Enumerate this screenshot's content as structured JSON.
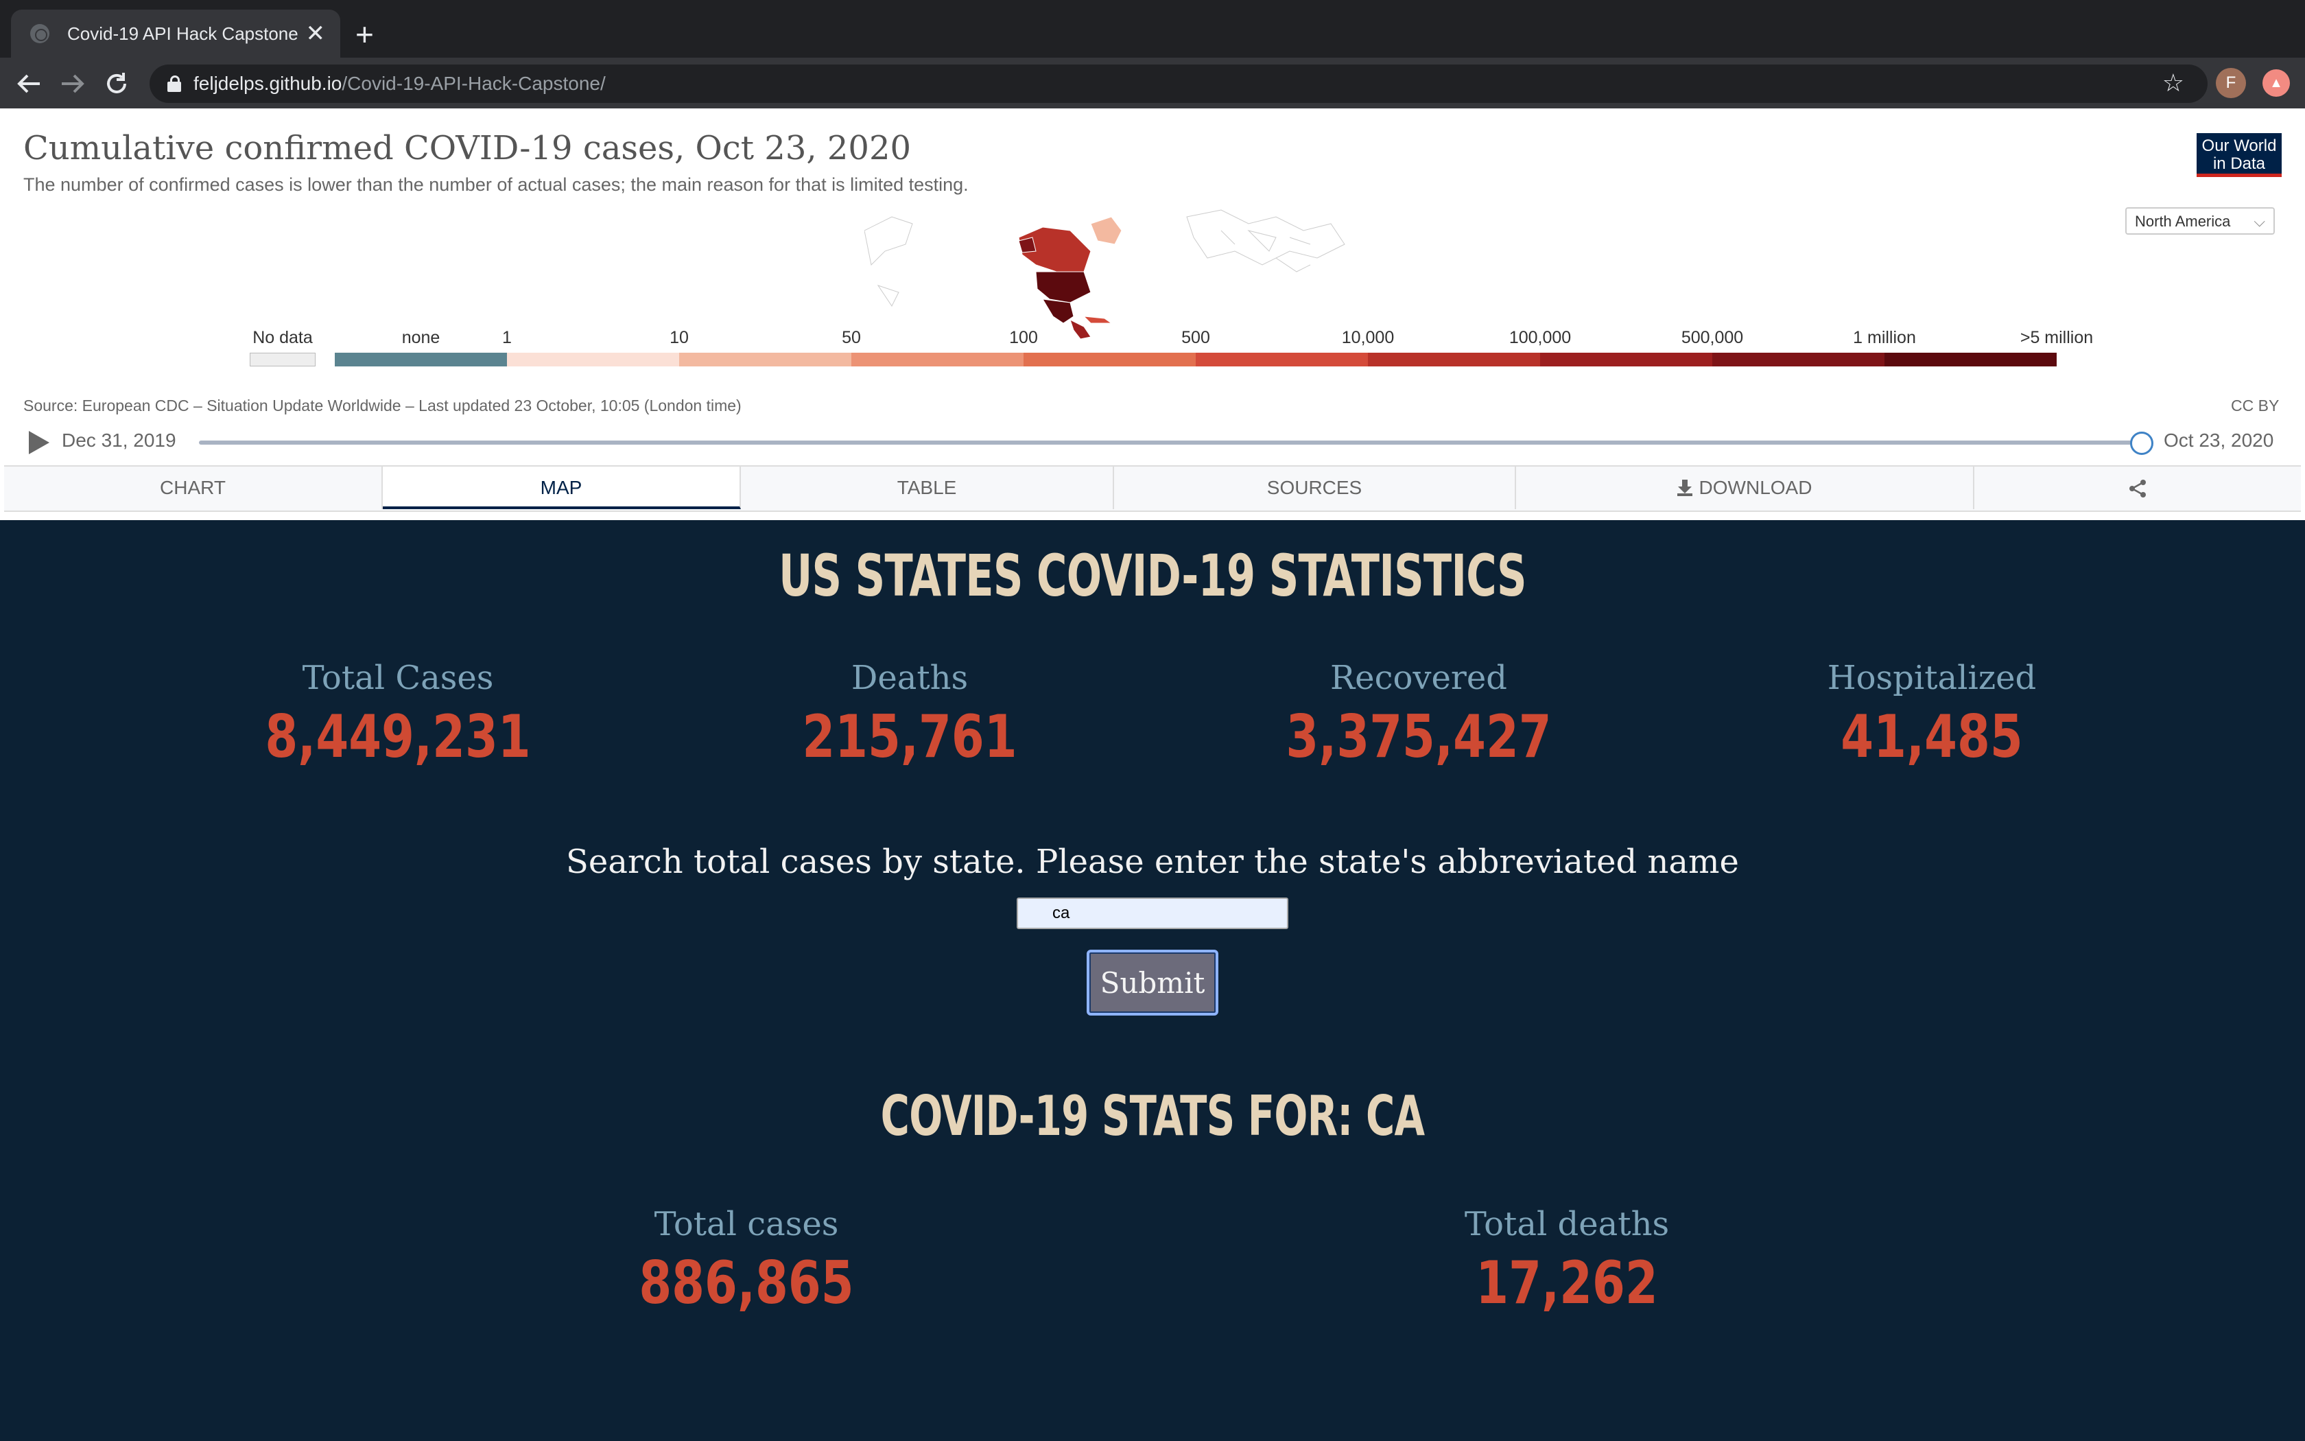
{
  "browser": {
    "tab_title": "Covid-19 API Hack Capstone",
    "tab_close": "✕",
    "new_tab": "+",
    "url_host": "feljdelps.github.io",
    "url_path": "/Covid-19-API-Hack-Capstone/",
    "profile_initial": "F",
    "icons": [
      "back-arrow-icon",
      "forward-arrow-icon",
      "reload-icon",
      "lock-icon",
      "star-icon",
      "extension-icon"
    ]
  },
  "owid": {
    "title": "Cumulative confirmed COVID-19 cases, Oct 23, 2020",
    "subtitle": "The number of confirmed cases is lower than the number of actual cases; the main reason for that is limited testing.",
    "logo_line1": "Our World",
    "logo_line2": "in Data",
    "region": "North America",
    "legend": {
      "no_data": "No data",
      "labels": [
        "none",
        "1",
        "10",
        "50",
        "100",
        "500",
        "10,000",
        "100,000",
        "500,000",
        "1 million",
        ">5 million"
      ],
      "colors": [
        "#5b8490",
        "#fbe0d6",
        "#f3b9a0",
        "#ec9375",
        "#e2704f",
        "#d44b3a",
        "#b83229",
        "#9c1f1f",
        "#7e1417",
        "#5c0a0e"
      ]
    },
    "source": "Source: European CDC – Situation Update Worldwide – Last updated 23 October, 10:05 (London time)",
    "license": "CC BY",
    "timeline_start": "Dec 31, 2019",
    "timeline_end": "Oct 23, 2020",
    "timeline_position": 1.0,
    "tabs": [
      "CHART",
      "MAP",
      "TABLE",
      "SOURCES",
      "DOWNLOAD"
    ],
    "active_tab": "MAP"
  },
  "dashboard": {
    "heading": "US STATES COVID-19 STATISTICS",
    "stats": [
      {
        "label": "Total Cases",
        "value": "8,449,231"
      },
      {
        "label": "Deaths",
        "value": "215,761"
      },
      {
        "label": "Recovered",
        "value": "3,375,427"
      },
      {
        "label": "Hospitalized",
        "value": "41,485"
      }
    ],
    "search_label": "Search total cases by state. Please enter the state's abbreviated name",
    "search_value": "ca",
    "submit_label": "Submit",
    "state_heading": "COVID-19 STATS FOR: CA",
    "state_stats": [
      {
        "label": "Total cases",
        "value": "886,865"
      },
      {
        "label": "Total deaths",
        "value": "17,262"
      }
    ],
    "colors": {
      "background": "#0c2134",
      "accent_value": "#cf4a33",
      "heading": "#e5d4b8",
      "label": "#7ea3b8"
    }
  }
}
